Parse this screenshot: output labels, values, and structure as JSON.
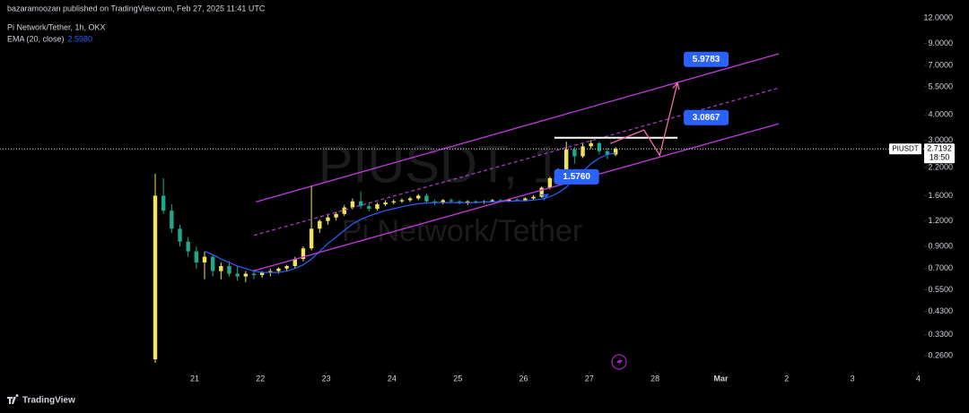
{
  "chart_data": {
    "type": "candlestick",
    "title": "bazaramoozan published on TradingView.com, Feb 27, 2025 11:41 UTC",
    "subtitle": "Pi Network/Tether, 1h, OKX",
    "watermark": [
      "PIUSDT, 1",
      "Pi Network/Tether"
    ],
    "symbol_tag": "PIUSDT",
    "countdown": "18:50",
    "brand": "TradingView",
    "log_scale": true,
    "grid": false,
    "up_color": "#f2e35b",
    "down_color": "#1fa88a",
    "x": [
      20.4,
      20.525,
      20.65,
      20.775,
      20.9,
      21.025,
      21.15,
      21.275,
      21.4,
      21.525,
      21.65,
      21.775,
      21.9,
      22.025,
      22.15,
      22.275,
      22.4,
      22.525,
      22.65,
      22.775,
      22.9,
      23.025,
      23.15,
      23.275,
      23.4,
      23.525,
      23.65,
      23.775,
      23.9,
      24.025,
      24.15,
      24.275,
      24.4,
      24.525,
      24.65,
      24.775,
      24.9,
      25.025,
      25.15,
      25.275,
      25.4,
      25.525,
      25.65,
      25.775,
      25.9,
      26.025,
      26.15,
      26.275,
      26.4,
      26.525,
      26.65,
      26.775,
      26.9,
      27.025,
      27.15,
      27.275,
      27.4
    ],
    "open": [
      0.25,
      1.6,
      1.35,
      1.1,
      0.95,
      0.85,
      0.75,
      0.8,
      0.68,
      0.72,
      0.66,
      0.64,
      0.66,
      0.65,
      0.67,
      0.68,
      0.7,
      0.72,
      0.78,
      0.88,
      1.1,
      1.2,
      1.25,
      1.3,
      1.4,
      1.5,
      1.42,
      1.38,
      1.45,
      1.48,
      1.5,
      1.52,
      1.55,
      1.6,
      1.5,
      1.48,
      1.52,
      1.5,
      1.47,
      1.5,
      1.49,
      1.5,
      1.52,
      1.51,
      1.53,
      1.52,
      1.55,
      1.58,
      1.75,
      1.95,
      2.1,
      2.7,
      2.5,
      2.8,
      2.9,
      2.65,
      2.55
    ],
    "high": [
      2.05,
      1.95,
      1.45,
      1.15,
      1.0,
      0.9,
      0.85,
      0.82,
      0.75,
      0.76,
      0.72,
      0.68,
      0.69,
      0.68,
      0.7,
      0.71,
      0.73,
      0.8,
      0.9,
      1.8,
      1.22,
      1.3,
      1.33,
      1.44,
      1.55,
      1.68,
      1.46,
      1.48,
      1.52,
      1.53,
      1.55,
      1.58,
      1.63,
      1.64,
      1.53,
      1.54,
      1.55,
      1.52,
      1.52,
      1.52,
      1.52,
      1.54,
      1.54,
      1.55,
      1.55,
      1.57,
      1.61,
      1.78,
      1.98,
      2.18,
      2.95,
      2.78,
      2.9,
      3.0,
      2.95,
      2.75,
      2.78
    ],
    "low": [
      0.24,
      1.3,
      1.05,
      0.9,
      0.8,
      0.7,
      0.62,
      0.64,
      0.62,
      0.64,
      0.61,
      0.6,
      0.62,
      0.63,
      0.64,
      0.66,
      0.68,
      0.7,
      0.76,
      0.86,
      1.05,
      1.15,
      1.21,
      1.27,
      1.37,
      1.38,
      1.34,
      1.35,
      1.42,
      1.45,
      1.47,
      1.49,
      1.52,
      1.46,
      1.44,
      1.45,
      1.47,
      1.45,
      1.44,
      1.46,
      1.46,
      1.48,
      1.49,
      1.49,
      1.5,
      1.5,
      1.53,
      1.56,
      1.72,
      1.9,
      2.05,
      2.3,
      2.45,
      2.72,
      2.55,
      2.42,
      2.5
    ],
    "close": [
      1.6,
      1.35,
      1.1,
      0.95,
      0.85,
      0.75,
      0.8,
      0.68,
      0.72,
      0.66,
      0.64,
      0.66,
      0.65,
      0.67,
      0.68,
      0.7,
      0.72,
      0.78,
      0.88,
      1.1,
      1.2,
      1.25,
      1.3,
      1.4,
      1.5,
      1.42,
      1.38,
      1.45,
      1.48,
      1.5,
      1.52,
      1.55,
      1.6,
      1.5,
      1.48,
      1.52,
      1.5,
      1.47,
      1.5,
      1.49,
      1.5,
      1.52,
      1.51,
      1.53,
      1.52,
      1.55,
      1.58,
      1.75,
      1.95,
      2.1,
      2.7,
      2.5,
      2.8,
      2.9,
      2.65,
      2.55,
      2.7192
    ],
    "series": [
      {
        "name": "EMA (20, close)",
        "last_label": "2.5980",
        "color": "#2962ff",
        "values": [
          null,
          null,
          null,
          null,
          null,
          null,
          0.85,
          0.82,
          0.78,
          0.75,
          0.72,
          0.7,
          0.68,
          0.67,
          0.67,
          0.67,
          0.68,
          0.7,
          0.73,
          0.78,
          0.85,
          0.93,
          1.0,
          1.08,
          1.16,
          1.22,
          1.27,
          1.31,
          1.35,
          1.38,
          1.41,
          1.44,
          1.46,
          1.47,
          1.48,
          1.48,
          1.48,
          1.48,
          1.48,
          1.48,
          1.49,
          1.49,
          1.5,
          1.5,
          1.51,
          1.51,
          1.52,
          1.54,
          1.58,
          1.65,
          1.76,
          1.95,
          2.1,
          2.3,
          2.45,
          2.55,
          2.598
        ]
      }
    ],
    "drawings": [
      {
        "color": "#c13be0",
        "dashed": false,
        "x": [
          21.93,
          29.88
        ],
        "y": [
          1.49,
          8.0
        ]
      },
      {
        "color": "#c13be0",
        "dashed": false,
        "x": [
          21.9,
          29.88
        ],
        "y": [
          0.683,
          3.62
        ]
      },
      {
        "color": "#a13cc0",
        "dashed": true,
        "x": [
          21.9,
          29.88
        ],
        "y": [
          1.02,
          5.43
        ]
      },
      {
        "color": "#ffffff",
        "dashed": false,
        "x": [
          26.47,
          28.34
        ],
        "y": [
          3.0867,
          3.0867
        ]
      },
      {
        "color": "#f06aa8",
        "dashed": false,
        "x": [
          27.32,
          27.83,
          28.07,
          28.34
        ],
        "y": [
          2.89,
          3.37,
          2.53,
          5.77
        ]
      },
      {
        "color": "#2962ff",
        "dashed": false,
        "x": [
          26.29,
          26.37
        ],
        "y": [
          1.57,
          1.62
        ]
      }
    ],
    "callouts": [
      {
        "value": 5.9783,
        "label": "5.9783",
        "x": 28.34
      },
      {
        "value": 3.0867,
        "label": "3.0867",
        "x": 28.34
      },
      {
        "value": 1.576,
        "label": "1.5760",
        "x": 26.37
      }
    ],
    "xlim": [
      18.04,
      32.09
    ],
    "xticks": [
      21,
      22,
      23,
      24,
      25,
      26,
      27,
      28,
      {
        "value": 29,
        "label": "Mar"
      },
      {
        "value": 30,
        "label": "2"
      },
      {
        "value": 31,
        "label": "3"
      },
      {
        "value": 32,
        "label": "4"
      }
    ],
    "ylim": [
      0.217,
      13.3
    ],
    "yticks": [
      {
        "value": 12,
        "label": "12.0000"
      },
      {
        "value": 9,
        "label": "9.0000"
      },
      {
        "value": 7,
        "label": "7.0000"
      },
      {
        "value": 5.5,
        "label": "5.5000"
      },
      {
        "value": 4,
        "label": "4.0000"
      },
      {
        "value": 3,
        "label": "3.0000"
      },
      {
        "value": 2.2,
        "label": "2.2000"
      },
      {
        "value": 1.6,
        "label": "1.6000"
      },
      {
        "value": 1.2,
        "label": "1.2000"
      },
      {
        "value": 0.9,
        "label": "0.9000"
      },
      {
        "value": 0.7,
        "label": "0.7000"
      },
      {
        "value": 0.55,
        "label": "0.5500"
      },
      {
        "value": 0.43,
        "label": "0.4300"
      },
      {
        "value": 0.33,
        "label": "0.3300"
      },
      {
        "value": 0.26,
        "label": "0.2600"
      }
    ]
  }
}
